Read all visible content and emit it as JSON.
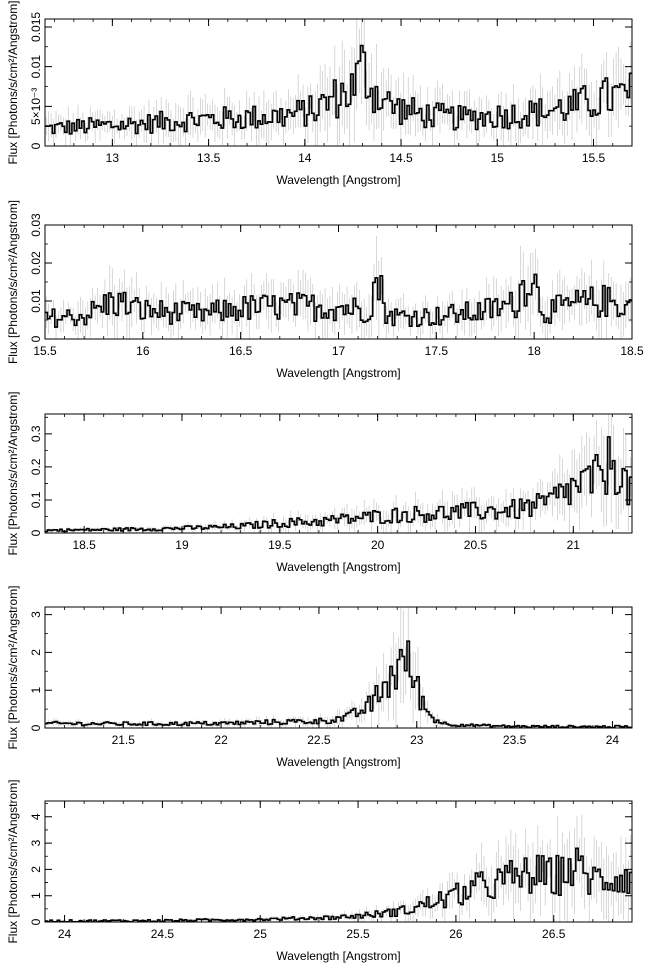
{
  "chart_data": [
    {
      "type": "line",
      "xlabel": "Wavelength [Angstrom]",
      "ylabel": "Flux [Photons/s/cm²/Angstrom]",
      "xlim": [
        12.65,
        15.7
      ],
      "ylim": [
        0,
        0.016
      ],
      "xticks": [
        13,
        13.5,
        14,
        14.5,
        15,
        15.5
      ],
      "yticks": [
        {
          "value": 0,
          "label": "0"
        },
        {
          "value": 0.005,
          "label": "5×10⁻³"
        },
        {
          "value": 0.01,
          "label": "0.01"
        },
        {
          "value": 0.015,
          "label": "0.015"
        }
      ],
      "series": [
        {
          "x": [
            12.65,
            12.9,
            13.15,
            13.4,
            13.65,
            13.9,
            14.05,
            14.15,
            14.25,
            14.3,
            14.35,
            14.45,
            14.6,
            14.8,
            15.0,
            15.2,
            15.4,
            15.55,
            15.7
          ],
          "y": [
            0.0022,
            0.0025,
            0.0028,
            0.0033,
            0.0035,
            0.0038,
            0.0045,
            0.006,
            0.0072,
            0.01,
            0.0072,
            0.005,
            0.004,
            0.0035,
            0.0038,
            0.0042,
            0.005,
            0.006,
            0.0065
          ]
        }
      ]
    },
    {
      "type": "line",
      "xlabel": "Wavelength [Angstrom]",
      "ylabel": "Flux [Photons/s/cm²/Angstrom]",
      "xlim": [
        15.5,
        18.5
      ],
      "ylim": [
        0,
        0.03
      ],
      "xticks": [
        15.5,
        16,
        16.5,
        17,
        17.5,
        18,
        18.5
      ],
      "yticks": [
        {
          "value": 0,
          "label": "0"
        },
        {
          "value": 0.01,
          "label": "0.01"
        },
        {
          "value": 0.02,
          "label": "0.02"
        },
        {
          "value": 0.03,
          "label": "0.03"
        }
      ],
      "series": [
        {
          "x": [
            15.5,
            15.7,
            15.85,
            16.0,
            16.3,
            16.5,
            16.7,
            17.0,
            17.15,
            17.2,
            17.25,
            17.5,
            17.7,
            17.9,
            17.98,
            18.05,
            18.2,
            18.35,
            18.5
          ],
          "y": [
            0.0055,
            0.006,
            0.01,
            0.0075,
            0.0065,
            0.008,
            0.0085,
            0.0085,
            0.0075,
            0.016,
            0.006,
            0.006,
            0.007,
            0.009,
            0.018,
            0.007,
            0.009,
            0.01,
            0.0085
          ]
        }
      ]
    },
    {
      "type": "line",
      "xlabel": "Wavelength [Angstrom]",
      "ylabel": "Flux [Photons/s/cm²/Angstrom]",
      "xlim": [
        18.3,
        21.3
      ],
      "ylim": [
        0,
        0.36
      ],
      "xticks": [
        18.5,
        19,
        19.5,
        20,
        20.5,
        21
      ],
      "yticks": [
        {
          "value": 0,
          "label": "0"
        },
        {
          "value": 0.1,
          "label": "0.1"
        },
        {
          "value": 0.2,
          "label": "0.2"
        },
        {
          "value": 0.3,
          "label": "0.3"
        }
      ],
      "series": [
        {
          "x": [
            18.3,
            18.6,
            18.9,
            19.1,
            19.3,
            19.5,
            19.7,
            19.9,
            20.1,
            20.3,
            20.5,
            20.7,
            20.85,
            20.95,
            21.05,
            21.15,
            21.2,
            21.3
          ],
          "y": [
            0.008,
            0.01,
            0.013,
            0.016,
            0.02,
            0.03,
            0.035,
            0.045,
            0.055,
            0.06,
            0.065,
            0.07,
            0.085,
            0.12,
            0.15,
            0.17,
            0.23,
            0.11
          ]
        }
      ]
    },
    {
      "type": "line",
      "xlabel": "Wavelength [Angstrom]",
      "ylabel": "Flux [Photons/s/cm²/Angstrom]",
      "xlim": [
        21.1,
        24.1
      ],
      "ylim": [
        0,
        3.2
      ],
      "xticks": [
        21.5,
        22,
        22.5,
        23,
        23.5,
        24
      ],
      "yticks": [
        {
          "value": 0,
          "label": "0"
        },
        {
          "value": 1,
          "label": "1"
        },
        {
          "value": 2,
          "label": "2"
        },
        {
          "value": 3,
          "label": "3"
        }
      ],
      "series": [
        {
          "x": [
            21.1,
            21.5,
            22.0,
            22.3,
            22.5,
            22.65,
            22.75,
            22.82,
            22.88,
            22.93,
            22.97,
            23.02,
            23.07,
            23.15,
            23.3,
            23.5,
            24.1
          ],
          "y": [
            0.12,
            0.11,
            0.12,
            0.16,
            0.18,
            0.28,
            0.55,
            0.95,
            1.45,
            1.8,
            1.55,
            0.8,
            0.3,
            0.1,
            0.07,
            0.04,
            0.03
          ]
        }
      ]
    },
    {
      "type": "line",
      "xlabel": "Wavelength [Angstrom]",
      "ylabel": "Flux [Photons/s/cm²/Angstrom]",
      "xlim": [
        23.9,
        26.9
      ],
      "ylim": [
        0,
        4.6
      ],
      "xticks": [
        24,
        24.5,
        25,
        25.5,
        26,
        26.5
      ],
      "yticks": [
        {
          "value": 0,
          "label": "0"
        },
        {
          "value": 1,
          "label": "1"
        },
        {
          "value": 2,
          "label": "2"
        },
        {
          "value": 3,
          "label": "3"
        },
        {
          "value": 4,
          "label": "4"
        }
      ],
      "series": [
        {
          "x": [
            23.9,
            24.5,
            25.0,
            25.4,
            25.6,
            25.75,
            25.9,
            26.0,
            26.1,
            26.2,
            26.3,
            26.4,
            26.5,
            26.6,
            26.7,
            26.8,
            26.9
          ],
          "y": [
            0.03,
            0.05,
            0.1,
            0.18,
            0.3,
            0.45,
            0.8,
            1.0,
            1.3,
            1.45,
            1.7,
            1.8,
            1.7,
            2.1,
            1.6,
            1.7,
            1.8
          ]
        }
      ]
    }
  ]
}
